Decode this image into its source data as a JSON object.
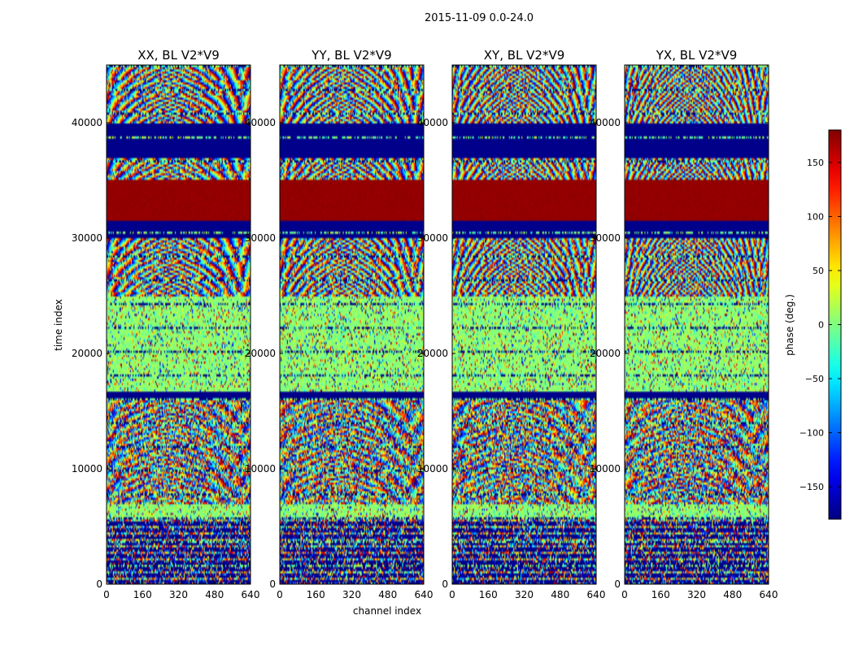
{
  "chart_data": {
    "type": "heatmap",
    "suptitle": "2015-11-09 0.0-24.0",
    "panels": [
      {
        "title": "XX, BL V2*V9"
      },
      {
        "title": "YY, BL V2*V9"
      },
      {
        "title": "XY, BL V2*V9"
      },
      {
        "title": "YX, BL V2*V9"
      }
    ],
    "xlabel": "channel index",
    "ylabel": "time index",
    "xlim": [
      0,
      640
    ],
    "ylim": [
      0,
      45000
    ],
    "xticks": [
      0,
      160,
      320,
      480,
      640
    ],
    "xtick_labels": [
      "0",
      "160",
      "320",
      "480",
      "640"
    ],
    "yticks": [
      0,
      10000,
      20000,
      30000,
      40000
    ],
    "ytick_labels": [
      "0",
      "10000",
      "20000",
      "30000",
      "40000"
    ],
    "colorbar": {
      "label": "phase (deg.)",
      "range": [
        -180,
        180
      ],
      "ticks": [
        -150,
        -100,
        -50,
        0,
        50,
        100,
        150
      ],
      "tick_labels": [
        "−150",
        "−100",
        "−50",
        "0",
        "50",
        "100",
        "150"
      ],
      "colormap": "jet"
    },
    "bands": [
      {
        "t0": 0,
        "t1": 5800,
        "pattern": "sparse-lines"
      },
      {
        "t0": 5800,
        "t1": 7000,
        "pattern": "noisy-green"
      },
      {
        "t0": 7000,
        "t1": 16000,
        "pattern": "noisy-fringe"
      },
      {
        "t0": 16000,
        "t1": 16600,
        "pattern": "dark-blue"
      },
      {
        "t0": 16600,
        "t1": 25000,
        "pattern": "noisy-green"
      },
      {
        "t0": 25000,
        "t1": 30000,
        "pattern": "fringe"
      },
      {
        "t0": 30000,
        "t1": 31500,
        "pattern": "dark-blue"
      },
      {
        "t0": 31500,
        "t1": 35000,
        "pattern": "dark-red"
      },
      {
        "t0": 35000,
        "t1": 37000,
        "pattern": "fringe"
      },
      {
        "t0": 37000,
        "t1": 40000,
        "pattern": "dark-blue"
      },
      {
        "t0": 40000,
        "t1": 45000,
        "pattern": "fringe"
      }
    ]
  }
}
